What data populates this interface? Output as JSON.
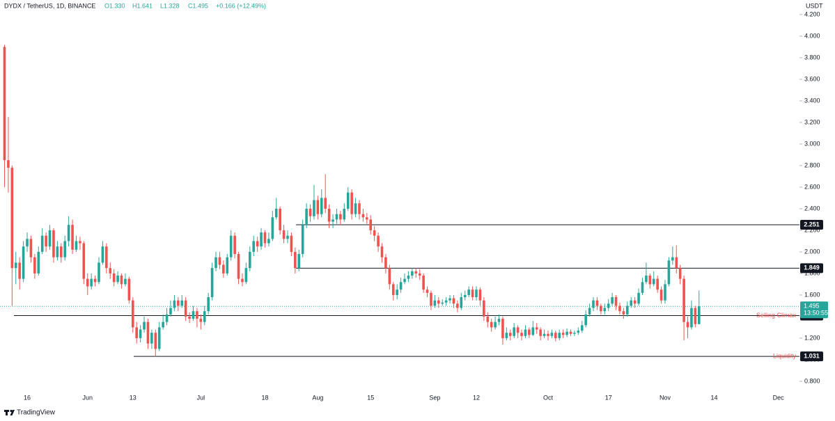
{
  "chart_data": {
    "type": "candlestick",
    "symbol": "DYDX / TetherUS, 1D, BINANCE",
    "ohlc_labels": [
      "O1.330",
      "H1.641",
      "L1.328",
      "C1.495",
      "+0.166 (+12.49%)"
    ],
    "currency": "USDT",
    "brand": "TradingView",
    "countdown": "13:50:55",
    "up_color": "#26a69a",
    "down_color": "#ef5350",
    "ylim": [
      0.69,
      4.335
    ],
    "yticks": [
      {
        "value": 0.8,
        "label": "0.800"
      },
      {
        "value": 1.0,
        "label": "1.000"
      },
      {
        "value": 1.2,
        "label": "1.200"
      },
      {
        "value": 1.4,
        "label": "1.400"
      },
      {
        "value": 1.6,
        "label": "1.600"
      },
      {
        "value": 1.8,
        "label": "1.800"
      },
      {
        "value": 2.0,
        "label": "2.000"
      },
      {
        "value": 2.2,
        "label": "2.200"
      },
      {
        "value": 2.4,
        "label": "2.400"
      },
      {
        "value": 2.6,
        "label": "2.600"
      },
      {
        "value": 2.8,
        "label": "2.800"
      },
      {
        "value": 3.0,
        "label": "3.000"
      },
      {
        "value": 3.2,
        "label": "3.200"
      },
      {
        "value": 3.4,
        "label": "3.400"
      },
      {
        "value": 3.6,
        "label": "3.600"
      },
      {
        "value": 3.8,
        "label": "3.800"
      },
      {
        "value": 4.0,
        "label": "4.000"
      },
      {
        "value": 4.2,
        "label": "4.200"
      }
    ],
    "levels": [
      {
        "value": 2.251
      },
      {
        "value": 1.849
      },
      {
        "value": 1.409,
        "name": "Selling Climax"
      },
      {
        "value": 1.031,
        "name": "Liquidity"
      }
    ],
    "categories": [
      null,
      null,
      null,
      null,
      null,
      null,
      "16",
      null,
      null,
      null,
      null,
      null,
      null,
      null,
      null,
      null,
      null,
      null,
      null,
      null,
      null,
      null,
      "Jun",
      null,
      null,
      null,
      null,
      null,
      null,
      null,
      null,
      null,
      null,
      null,
      "13",
      null,
      null,
      null,
      null,
      null,
      null,
      null,
      null,
      null,
      null,
      null,
      null,
      null,
      null,
      null,
      null,
      null,
      "Jul",
      null,
      null,
      null,
      null,
      null,
      null,
      null,
      null,
      null,
      null,
      null,
      null,
      null,
      null,
      null,
      null,
      "18",
      null,
      null,
      null,
      null,
      null,
      null,
      null,
      null,
      null,
      null,
      null,
      null,
      null,
      "Aug",
      null,
      null,
      null,
      null,
      null,
      null,
      null,
      null,
      null,
      null,
      null,
      null,
      null,
      "15",
      null,
      null,
      null,
      null,
      null,
      null,
      null,
      null,
      null,
      null,
      null,
      null,
      null,
      null,
      null,
      null,
      "Sep",
      null,
      null,
      null,
      null,
      null,
      null,
      null,
      null,
      null,
      null,
      "12",
      null,
      null,
      null,
      null,
      null,
      null,
      null,
      null,
      null,
      null,
      null,
      null,
      null,
      null,
      null,
      null,
      null,
      null,
      "Oct",
      null,
      null,
      null,
      null,
      null,
      null,
      null,
      null,
      null,
      null,
      null,
      null,
      null,
      null,
      null,
      "17",
      null,
      null,
      null,
      null,
      null,
      null,
      null,
      null,
      null,
      null,
      null,
      null,
      null,
      null,
      "Nov",
      null,
      null,
      null,
      null,
      null,
      null,
      null,
      null,
      null,
      null,
      null,
      null,
      "14",
      null,
      null,
      null,
      null,
      null,
      null,
      null,
      null,
      null,
      null,
      null,
      null,
      null,
      null,
      null,
      null,
      "Dec",
      null,
      null,
      null,
      null,
      null
    ],
    "open": [
      3.9,
      2.85,
      2.78,
      1.85,
      1.9,
      1.75,
      2.05,
      2.12,
      1.95,
      1.8,
      2.0,
      2.15,
      2.05,
      2.2,
      1.95,
      2.05,
      1.95,
      2.1,
      2.25,
      2.02,
      2.1,
      2.08,
      1.75,
      1.68,
      1.75,
      1.72,
      1.9,
      2.05,
      1.85,
      1.8,
      1.72,
      1.78,
      1.7,
      1.75,
      1.55,
      1.3,
      1.2,
      1.28,
      1.35,
      1.15,
      1.25,
      1.1,
      1.3,
      1.35,
      1.42,
      1.48,
      1.55,
      1.5,
      1.55,
      1.4,
      1.38,
      1.45,
      1.38,
      1.35,
      1.45,
      1.58,
      1.85,
      1.95,
      1.88,
      1.8,
      1.95,
      2.15,
      1.98,
      1.75,
      1.72,
      1.85,
      2.0,
      2.1,
      2.05,
      2.18,
      2.08,
      2.12,
      2.32,
      2.4,
      2.2,
      2.12,
      2.15,
      2.0,
      1.85,
      1.98,
      2.25,
      2.4,
      2.33,
      2.48,
      2.35,
      2.5,
      2.4,
      2.28,
      2.3,
      2.35,
      2.3,
      2.4,
      2.55,
      2.35,
      2.45,
      2.35,
      2.32,
      2.3,
      2.2,
      2.15,
      2.05,
      1.95,
      1.85,
      1.7,
      1.6,
      1.65,
      1.72,
      1.75,
      1.78,
      1.82,
      1.8,
      1.78,
      1.65,
      1.62,
      1.5,
      1.55,
      1.52,
      1.53,
      1.55,
      1.57,
      1.52,
      1.48,
      1.58,
      1.6,
      1.65,
      1.58,
      1.65,
      1.55,
      1.4,
      1.35,
      1.3,
      1.35,
      1.38,
      1.2,
      1.25,
      1.22,
      1.3,
      1.25,
      1.22,
      1.28,
      1.23,
      1.3,
      1.28,
      1.22,
      1.24,
      1.22,
      1.25,
      1.2,
      1.25,
      1.23,
      1.26,
      1.24,
      1.25,
      1.27,
      1.32,
      1.42,
      1.48,
      1.55,
      1.5,
      1.45,
      1.48,
      1.52,
      1.58,
      1.5,
      1.45,
      1.42,
      1.5,
      1.55,
      1.52,
      1.62,
      1.72,
      1.78,
      1.7,
      1.75,
      1.65,
      1.55,
      1.7,
      1.92,
      1.95,
      1.85,
      1.75,
      1.35,
      1.3,
      1.48,
      1.33,
      null,
      null,
      null,
      null,
      null,
      null,
      null,
      null,
      null,
      null,
      null,
      null,
      null,
      null,
      null,
      null,
      null,
      null,
      null,
      null,
      null,
      null,
      null,
      null,
      null,
      null
    ],
    "high": [
      3.92,
      3.25,
      2.8,
      2.0,
      1.95,
      2.1,
      2.18,
      2.15,
      1.98,
      2.05,
      2.22,
      2.18,
      2.25,
      2.22,
      2.1,
      2.08,
      2.15,
      2.33,
      2.3,
      2.15,
      2.14,
      2.1,
      1.8,
      1.8,
      1.78,
      1.95,
      2.1,
      2.08,
      1.9,
      1.84,
      1.82,
      1.8,
      1.8,
      1.77,
      1.58,
      1.35,
      1.32,
      1.4,
      1.38,
      1.28,
      1.28,
      1.35,
      1.42,
      1.48,
      1.55,
      1.6,
      1.58,
      1.6,
      1.58,
      1.44,
      1.5,
      1.48,
      1.42,
      1.5,
      1.62,
      1.9,
      2.0,
      2.0,
      1.92,
      1.98,
      2.2,
      2.18,
      2.0,
      1.8,
      1.9,
      2.05,
      2.15,
      2.14,
      2.22,
      2.2,
      2.18,
      2.38,
      2.5,
      2.42,
      2.25,
      2.2,
      2.18,
      2.04,
      2.02,
      2.3,
      2.45,
      2.44,
      2.62,
      2.52,
      2.58,
      2.72,
      2.44,
      2.35,
      2.4,
      2.38,
      2.45,
      2.6,
      2.58,
      2.5,
      2.48,
      2.4,
      2.36,
      2.34,
      2.24,
      2.18,
      2.08,
      1.98,
      1.88,
      1.72,
      1.7,
      1.76,
      1.8,
      1.82,
      1.85,
      1.85,
      1.84,
      1.8,
      1.68,
      1.64,
      1.6,
      1.58,
      1.56,
      1.58,
      1.6,
      1.6,
      1.55,
      1.62,
      1.64,
      1.68,
      1.68,
      1.68,
      1.67,
      1.58,
      1.44,
      1.38,
      1.4,
      1.42,
      1.4,
      1.3,
      1.28,
      1.34,
      1.32,
      1.28,
      1.32,
      1.3,
      1.36,
      1.34,
      1.3,
      1.28,
      1.27,
      1.28,
      1.27,
      1.28,
      1.28,
      1.29,
      1.28,
      1.27,
      1.3,
      1.36,
      1.46,
      1.52,
      1.58,
      1.58,
      1.52,
      1.52,
      1.56,
      1.62,
      1.6,
      1.53,
      1.48,
      1.54,
      1.58,
      1.58,
      1.66,
      1.76,
      1.9,
      1.8,
      1.82,
      1.78,
      1.68,
      1.74,
      1.95,
      2.05,
      2.06,
      1.88,
      1.78,
      1.4,
      1.55,
      1.5,
      1.641,
      null,
      null,
      null,
      null,
      null,
      null,
      null,
      null,
      null,
      null,
      null,
      null,
      null,
      null,
      null,
      null,
      null,
      null,
      null,
      null,
      null,
      null,
      null,
      null,
      null,
      null
    ],
    "low": [
      2.6,
      2.55,
      1.5,
      1.7,
      1.65,
      1.72,
      2.0,
      1.9,
      1.75,
      1.78,
      1.98,
      2.0,
      2.02,
      1.9,
      1.92,
      1.9,
      1.92,
      2.05,
      1.98,
      2.0,
      2.02,
      1.7,
      1.6,
      1.65,
      1.68,
      1.7,
      1.88,
      1.8,
      1.75,
      1.68,
      1.7,
      1.66,
      1.68,
      1.52,
      1.25,
      1.15,
      1.16,
      1.25,
      1.1,
      1.1,
      1.03,
      1.08,
      1.28,
      1.32,
      1.4,
      1.45,
      1.45,
      1.48,
      1.36,
      1.34,
      1.36,
      1.3,
      1.28,
      1.32,
      1.42,
      1.55,
      1.82,
      1.84,
      1.76,
      1.78,
      1.92,
      1.94,
      1.7,
      1.68,
      1.7,
      1.82,
      1.96,
      2.0,
      2.02,
      2.04,
      2.05,
      2.1,
      2.3,
      2.16,
      2.08,
      2.08,
      1.96,
      1.8,
      1.82,
      1.95,
      2.22,
      2.28,
      2.3,
      2.3,
      2.32,
      2.36,
      2.22,
      2.22,
      2.26,
      2.25,
      2.28,
      2.38,
      2.3,
      2.32,
      2.3,
      2.28,
      2.26,
      2.16,
      2.1,
      2.0,
      1.9,
      1.8,
      1.65,
      1.55,
      1.56,
      1.62,
      1.7,
      1.72,
      1.75,
      1.76,
      1.74,
      1.62,
      1.58,
      1.46,
      1.48,
      1.48,
      1.5,
      1.5,
      1.52,
      1.48,
      1.44,
      1.46,
      1.55,
      1.58,
      1.55,
      1.55,
      1.5,
      1.36,
      1.3,
      1.26,
      1.28,
      1.32,
      1.14,
      1.18,
      1.18,
      1.2,
      1.2,
      1.18,
      1.2,
      1.2,
      1.22,
      1.24,
      1.18,
      1.2,
      1.18,
      1.2,
      1.17,
      1.18,
      1.2,
      1.21,
      1.22,
      1.22,
      1.23,
      1.25,
      1.3,
      1.4,
      1.45,
      1.46,
      1.42,
      1.42,
      1.45,
      1.5,
      1.46,
      1.42,
      1.38,
      1.4,
      1.48,
      1.48,
      1.5,
      1.6,
      1.7,
      1.66,
      1.68,
      1.62,
      1.52,
      1.52,
      1.68,
      1.88,
      1.8,
      1.7,
      1.18,
      1.2,
      1.28,
      1.3,
      1.328,
      null,
      null,
      null,
      null,
      null,
      null,
      null,
      null,
      null,
      null,
      null,
      null,
      null,
      null,
      null,
      null,
      null,
      null,
      null,
      null,
      null,
      null,
      null,
      null,
      null,
      null
    ],
    "close": [
      2.85,
      2.78,
      1.85,
      1.9,
      1.75,
      2.05,
      2.12,
      1.95,
      1.8,
      2.0,
      2.15,
      2.05,
      2.2,
      1.95,
      2.05,
      1.95,
      2.1,
      2.25,
      2.02,
      2.1,
      2.08,
      1.75,
      1.68,
      1.75,
      1.72,
      1.9,
      2.05,
      1.85,
      1.8,
      1.72,
      1.78,
      1.7,
      1.75,
      1.55,
      1.3,
      1.2,
      1.28,
      1.35,
      1.15,
      1.25,
      1.1,
      1.3,
      1.35,
      1.42,
      1.48,
      1.55,
      1.5,
      1.55,
      1.4,
      1.38,
      1.45,
      1.38,
      1.35,
      1.45,
      1.58,
      1.85,
      1.95,
      1.88,
      1.8,
      1.95,
      2.15,
      1.98,
      1.75,
      1.72,
      1.85,
      2.0,
      2.1,
      2.05,
      2.18,
      2.08,
      2.12,
      2.32,
      2.4,
      2.2,
      2.12,
      2.15,
      2.0,
      1.85,
      1.98,
      2.25,
      2.4,
      2.33,
      2.48,
      2.35,
      2.5,
      2.4,
      2.28,
      2.3,
      2.35,
      2.3,
      2.4,
      2.55,
      2.35,
      2.45,
      2.35,
      2.32,
      2.3,
      2.2,
      2.15,
      2.05,
      1.95,
      1.85,
      1.7,
      1.6,
      1.65,
      1.72,
      1.75,
      1.78,
      1.82,
      1.8,
      1.78,
      1.65,
      1.62,
      1.5,
      1.55,
      1.52,
      1.53,
      1.55,
      1.57,
      1.52,
      1.48,
      1.58,
      1.6,
      1.65,
      1.58,
      1.65,
      1.55,
      1.4,
      1.35,
      1.3,
      1.35,
      1.38,
      1.2,
      1.25,
      1.22,
      1.3,
      1.25,
      1.22,
      1.28,
      1.23,
      1.3,
      1.28,
      1.22,
      1.24,
      1.22,
      1.25,
      1.2,
      1.25,
      1.23,
      1.26,
      1.24,
      1.25,
      1.27,
      1.32,
      1.42,
      1.48,
      1.55,
      1.5,
      1.45,
      1.48,
      1.52,
      1.58,
      1.5,
      1.45,
      1.42,
      1.5,
      1.55,
      1.52,
      1.62,
      1.72,
      1.78,
      1.7,
      1.75,
      1.65,
      1.55,
      1.7,
      1.92,
      1.95,
      1.85,
      1.75,
      1.35,
      1.3,
      1.48,
      1.33,
      1.495,
      null,
      null,
      null,
      null,
      null,
      null,
      null,
      null,
      null,
      null,
      null,
      null,
      null,
      null,
      null,
      null,
      null,
      null,
      null,
      null,
      null,
      null,
      null,
      null,
      null,
      null
    ]
  }
}
